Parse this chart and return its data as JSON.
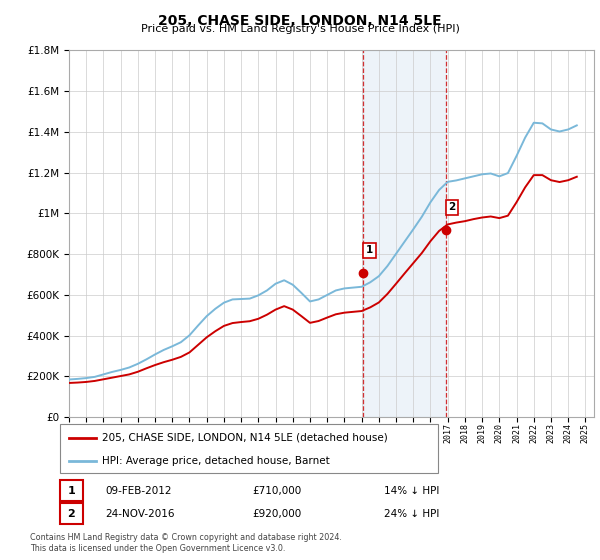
{
  "title": "205, CHASE SIDE, LONDON, N14 5LE",
  "subtitle": "Price paid vs. HM Land Registry's House Price Index (HPI)",
  "legend_line1": "205, CHASE SIDE, LONDON, N14 5LE (detached house)",
  "legend_line2": "HPI: Average price, detached house, Barnet",
  "footer": "Contains HM Land Registry data © Crown copyright and database right 2024.\nThis data is licensed under the Open Government Licence v3.0.",
  "sale1_date": "09-FEB-2012",
  "sale1_price": 710000,
  "sale1_label": "14% ↓ HPI",
  "sale1_year": 2012.1,
  "sale2_date": "24-NOV-2016",
  "sale2_price": 920000,
  "sale2_label": "24% ↓ HPI",
  "sale2_year": 2016.9,
  "hpi_color": "#7ab8d9",
  "price_color": "#cc0000",
  "shade_color": "#c6d9ed",
  "marker_color": "#cc0000",
  "ylim_min": 0,
  "ylim_max": 1800000,
  "xlim_min": 1995.0,
  "xlim_max": 2025.5,
  "hpi_data": {
    "years": [
      1995.0,
      1995.5,
      1996.0,
      1996.5,
      1997.0,
      1997.5,
      1998.0,
      1998.5,
      1999.0,
      1999.5,
      2000.0,
      2000.5,
      2001.0,
      2001.5,
      2002.0,
      2002.5,
      2003.0,
      2003.5,
      2004.0,
      2004.5,
      2005.0,
      2005.5,
      2006.0,
      2006.5,
      2007.0,
      2007.5,
      2008.0,
      2008.5,
      2009.0,
      2009.5,
      2010.0,
      2010.5,
      2011.0,
      2011.5,
      2012.0,
      2012.5,
      2013.0,
      2013.5,
      2014.0,
      2014.5,
      2015.0,
      2015.5,
      2016.0,
      2016.5,
      2017.0,
      2017.5,
      2018.0,
      2018.5,
      2019.0,
      2019.5,
      2020.0,
      2020.5,
      2021.0,
      2021.5,
      2022.0,
      2022.5,
      2023.0,
      2023.5,
      2024.0,
      2024.5
    ],
    "values": [
      185000,
      188000,
      192000,
      198000,
      210000,
      222000,
      232000,
      244000,
      262000,
      284000,
      308000,
      330000,
      348000,
      368000,
      402000,
      450000,
      496000,
      532000,
      562000,
      578000,
      580000,
      582000,
      598000,
      622000,
      655000,
      672000,
      650000,
      610000,
      568000,
      578000,
      600000,
      622000,
      632000,
      636000,
      640000,
      662000,
      692000,
      742000,
      802000,
      862000,
      922000,
      984000,
      1055000,
      1115000,
      1155000,
      1162000,
      1172000,
      1182000,
      1192000,
      1196000,
      1182000,
      1198000,
      1282000,
      1372000,
      1445000,
      1442000,
      1412000,
      1402000,
      1412000,
      1432000
    ]
  },
  "price_data": {
    "years": [
      1995.0,
      1995.5,
      1996.0,
      1996.5,
      1997.0,
      1997.5,
      1998.0,
      1998.5,
      1999.0,
      1999.5,
      2000.0,
      2000.5,
      2001.0,
      2001.5,
      2002.0,
      2002.5,
      2003.0,
      2003.5,
      2004.0,
      2004.5,
      2005.0,
      2005.5,
      2006.0,
      2006.5,
      2007.0,
      2007.5,
      2008.0,
      2008.5,
      2009.0,
      2009.5,
      2010.0,
      2010.5,
      2011.0,
      2011.5,
      2012.0,
      2012.5,
      2013.0,
      2013.5,
      2014.0,
      2014.5,
      2015.0,
      2015.5,
      2016.0,
      2016.5,
      2017.0,
      2017.5,
      2018.0,
      2018.5,
      2019.0,
      2019.5,
      2020.0,
      2020.5,
      2021.0,
      2021.5,
      2022.0,
      2022.5,
      2023.0,
      2023.5,
      2024.0,
      2024.5
    ],
    "values": [
      168000,
      170000,
      173000,
      178000,
      186000,
      194000,
      202000,
      210000,
      223000,
      240000,
      256000,
      270000,
      282000,
      296000,
      318000,
      355000,
      392000,
      422000,
      448000,
      462000,
      467000,
      471000,
      483000,
      503000,
      528000,
      545000,
      528000,
      496000,
      463000,
      472000,
      489000,
      505000,
      513000,
      517000,
      521000,
      539000,
      563000,
      605000,
      655000,
      706000,
      756000,
      806000,
      864000,
      914000,
      946000,
      955000,
      962000,
      972000,
      980000,
      985000,
      977000,
      989000,
      1055000,
      1128000,
      1188000,
      1188000,
      1163000,
      1154000,
      1163000,
      1180000
    ]
  }
}
